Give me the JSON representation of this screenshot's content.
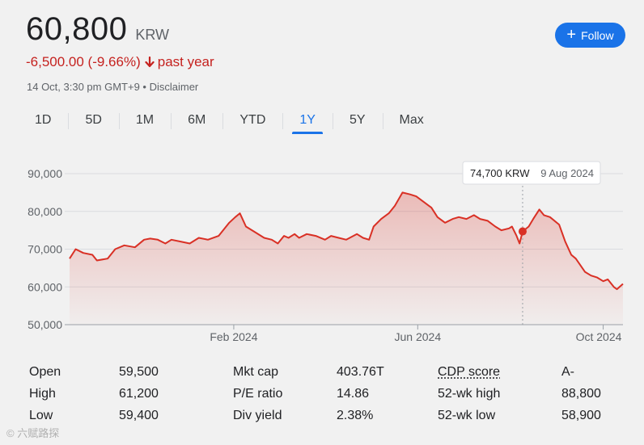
{
  "header": {
    "price": "60,800",
    "currency": "KRW",
    "change": "-6,500.00 (-9.66%)",
    "change_period": "past year",
    "timestamp": "14 Oct, 3:30 pm GMT+9",
    "separator": " • ",
    "disclaimer": "Disclaimer",
    "follow_label": "Follow",
    "follow_icon": "plus-icon",
    "arrow_icon": "arrow-down-icon",
    "negative_color": "#c5221f",
    "accent_color": "#1a73e8"
  },
  "tabs": [
    {
      "label": "1D"
    },
    {
      "label": "5D"
    },
    {
      "label": "1M"
    },
    {
      "label": "6M"
    },
    {
      "label": "YTD"
    },
    {
      "label": "1Y",
      "active": true
    },
    {
      "label": "5Y"
    },
    {
      "label": "Max"
    }
  ],
  "chart_data": {
    "type": "area",
    "line_color": "#d93025",
    "y_ticks": [
      "90,000",
      "80,000",
      "70,000",
      "60,000",
      "50,000"
    ],
    "y_tick_values": [
      90000,
      80000,
      70000,
      60000,
      50000
    ],
    "ylim": [
      50000,
      90000
    ],
    "x_ticks": [
      {
        "label": "Feb 2024",
        "date": "2024-02-01"
      },
      {
        "label": "Jun 2024",
        "date": "2024-06-01"
      },
      {
        "label": "Oct 2024",
        "date": "2024-10-01"
      }
    ],
    "x_range": [
      "2023-10-16",
      "2024-10-14"
    ],
    "tooltip": {
      "value": "74,700 KRW",
      "date": "9 Aug 2024",
      "x": "2024-08-09",
      "y": 74700
    },
    "series": [
      {
        "points": [
          [
            "2023-10-16",
            67500
          ],
          [
            "2023-10-20",
            70000
          ],
          [
            "2023-10-25",
            69000
          ],
          [
            "2023-10-31",
            68500
          ],
          [
            "2023-11-03",
            67000
          ],
          [
            "2023-11-10",
            67500
          ],
          [
            "2023-11-15",
            70000
          ],
          [
            "2023-11-21",
            71000
          ],
          [
            "2023-11-28",
            70500
          ],
          [
            "2023-12-04",
            72500
          ],
          [
            "2023-12-08",
            72800
          ],
          [
            "2023-12-13",
            72500
          ],
          [
            "2023-12-18",
            71500
          ],
          [
            "2023-12-22",
            72500
          ],
          [
            "2023-12-28",
            72000
          ],
          [
            "2024-01-03",
            71500
          ],
          [
            "2024-01-09",
            73000
          ],
          [
            "2024-01-15",
            72500
          ],
          [
            "2024-01-22",
            73500
          ],
          [
            "2024-01-29",
            77000
          ],
          [
            "2024-02-02",
            78500
          ],
          [
            "2024-02-05",
            79500
          ],
          [
            "2024-02-09",
            76000
          ],
          [
            "2024-02-15",
            74500
          ],
          [
            "2024-02-21",
            73000
          ],
          [
            "2024-02-26",
            72500
          ],
          [
            "2024-03-01",
            71500
          ],
          [
            "2024-03-05",
            73500
          ],
          [
            "2024-03-08",
            73000
          ],
          [
            "2024-03-12",
            74000
          ],
          [
            "2024-03-15",
            73000
          ],
          [
            "2024-03-20",
            74000
          ],
          [
            "2024-03-26",
            73500
          ],
          [
            "2024-04-01",
            72500
          ],
          [
            "2024-04-05",
            73500
          ],
          [
            "2024-04-10",
            73000
          ],
          [
            "2024-04-15",
            72500
          ],
          [
            "2024-04-22",
            74000
          ],
          [
            "2024-04-26",
            73000
          ],
          [
            "2024-04-30",
            72500
          ],
          [
            "2024-05-03",
            76000
          ],
          [
            "2024-05-08",
            78000
          ],
          [
            "2024-05-13",
            79500
          ],
          [
            "2024-05-17",
            81500
          ],
          [
            "2024-05-22",
            85000
          ],
          [
            "2024-05-27",
            84500
          ],
          [
            "2024-05-31",
            84000
          ],
          [
            "2024-06-05",
            82500
          ],
          [
            "2024-06-10",
            81000
          ],
          [
            "2024-06-14",
            78500
          ],
          [
            "2024-06-19",
            77000
          ],
          [
            "2024-06-24",
            78000
          ],
          [
            "2024-06-28",
            78500
          ],
          [
            "2024-07-03",
            78000
          ],
          [
            "2024-07-08",
            79000
          ],
          [
            "2024-07-12",
            78000
          ],
          [
            "2024-07-17",
            77500
          ],
          [
            "2024-07-22",
            76000
          ],
          [
            "2024-07-26",
            75000
          ],
          [
            "2024-07-31",
            75500
          ],
          [
            "2024-08-02",
            76000
          ],
          [
            "2024-08-05",
            73500
          ],
          [
            "2024-08-07",
            71500
          ],
          [
            "2024-08-09",
            74700
          ],
          [
            "2024-08-13",
            76000
          ],
          [
            "2024-08-16",
            78000
          ],
          [
            "2024-08-20",
            80500
          ],
          [
            "2024-08-23",
            79000
          ],
          [
            "2024-08-27",
            78500
          ],
          [
            "2024-09-02",
            76500
          ],
          [
            "2024-09-06",
            72000
          ],
          [
            "2024-09-10",
            68500
          ],
          [
            "2024-09-13",
            67500
          ],
          [
            "2024-09-19",
            64000
          ],
          [
            "2024-09-23",
            63000
          ],
          [
            "2024-09-27",
            62500
          ],
          [
            "2024-10-01",
            61500
          ],
          [
            "2024-10-04",
            62000
          ],
          [
            "2024-10-08",
            60000
          ],
          [
            "2024-10-10",
            59400
          ],
          [
            "2024-10-14",
            60800
          ]
        ]
      }
    ]
  },
  "stats": [
    [
      {
        "label": "Open",
        "value": "59,500"
      },
      {
        "label": "Mkt cap",
        "value": "403.76T"
      },
      {
        "label": "CDP score",
        "value": "A-"
      }
    ],
    [
      {
        "label": "High",
        "value": "61,200"
      },
      {
        "label": "P/E ratio",
        "value": "14.86"
      },
      {
        "label": "52-wk high",
        "value": "88,800"
      }
    ],
    [
      {
        "label": "Low",
        "value": "59,400"
      },
      {
        "label": "Div yield",
        "value": "2.38%"
      },
      {
        "label": "52-wk low",
        "value": "58,900"
      }
    ]
  ],
  "watermark": "© 六赋路探"
}
